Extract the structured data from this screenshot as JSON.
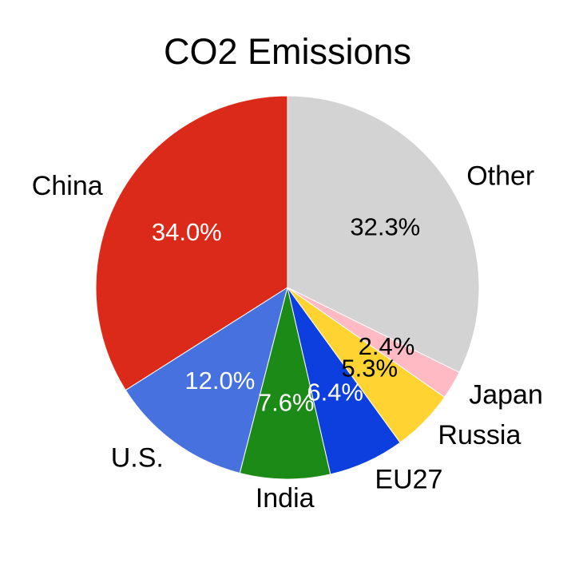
{
  "chart_data": {
    "type": "pie",
    "title": "CO2 Emissions",
    "start_angle_deg": 90,
    "direction": "counterclockwise",
    "slices": [
      {
        "name": "China",
        "value": 34.0,
        "pct_label": "34.0%",
        "color": "#dc2a1a",
        "pct_color": "#ffffff"
      },
      {
        "name": "U.S.",
        "value": 12.0,
        "pct_label": "12.0%",
        "color": "#4671de",
        "pct_color": "#ffffff"
      },
      {
        "name": "India",
        "value": 7.6,
        "pct_label": "7.6%",
        "color": "#1c8a17",
        "pct_color": "#ffffff"
      },
      {
        "name": "EU27",
        "value": 6.4,
        "pct_label": "6.4%",
        "color": "#0c3fde",
        "pct_color": "#ffffff"
      },
      {
        "name": "Russia",
        "value": 5.3,
        "pct_label": "5.3%",
        "color": "#ffd432",
        "pct_color": "#000000"
      },
      {
        "name": "Japan",
        "value": 2.4,
        "pct_label": "2.4%",
        "color": "#ffbac3",
        "pct_color": "#000000"
      },
      {
        "name": "Other",
        "value": 32.3,
        "pct_label": "32.3%",
        "color": "#d3d3d3",
        "pct_color": "#000000"
      }
    ]
  }
}
